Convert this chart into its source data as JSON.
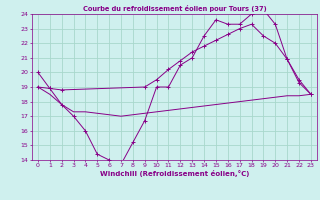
{
  "title": "Courbe du refroidissement éolien pour Tours (37)",
  "xlabel": "Windchill (Refroidissement éolien,°C)",
  "xlim": [
    -0.5,
    23.5
  ],
  "ylim": [
    14,
    24
  ],
  "yticks": [
    14,
    15,
    16,
    17,
    18,
    19,
    20,
    21,
    22,
    23,
    24
  ],
  "xticks": [
    0,
    1,
    2,
    3,
    4,
    5,
    6,
    7,
    8,
    9,
    10,
    11,
    12,
    13,
    14,
    15,
    16,
    17,
    18,
    19,
    20,
    21,
    22,
    23
  ],
  "background_color": "#cff0ee",
  "grid_color": "#a8d8cc",
  "line_color": "#880088",
  "line1_x": [
    0,
    1,
    2,
    3,
    4,
    5,
    6,
    7,
    8,
    9,
    10,
    11,
    12,
    13,
    14,
    15,
    16,
    17,
    18,
    19,
    20,
    21,
    22,
    23
  ],
  "line1_y": [
    20.0,
    18.9,
    17.8,
    17.0,
    16.0,
    14.4,
    14.0,
    13.7,
    15.2,
    16.7,
    19.0,
    19.0,
    20.5,
    21.0,
    22.5,
    23.6,
    23.3,
    23.3,
    24.0,
    24.3,
    23.3,
    20.9,
    19.3,
    18.5
  ],
  "line2_x": [
    0,
    1,
    2,
    9,
    10,
    11,
    12,
    13,
    14,
    15,
    16,
    17,
    18,
    19,
    20,
    21,
    22,
    23
  ],
  "line2_y": [
    19.0,
    18.9,
    18.8,
    19.0,
    19.5,
    20.2,
    20.8,
    21.4,
    21.8,
    22.2,
    22.6,
    23.0,
    23.3,
    22.5,
    22.0,
    20.9,
    19.5,
    18.5
  ],
  "line3_x": [
    0,
    1,
    2,
    3,
    4,
    5,
    6,
    7,
    8,
    9,
    10,
    11,
    12,
    13,
    14,
    15,
    16,
    17,
    18,
    19,
    20,
    21,
    22,
    23
  ],
  "line3_y": [
    19.0,
    18.5,
    17.8,
    17.3,
    17.3,
    17.2,
    17.1,
    17.0,
    17.1,
    17.2,
    17.3,
    17.4,
    17.5,
    17.6,
    17.7,
    17.8,
    17.9,
    18.0,
    18.1,
    18.2,
    18.3,
    18.4,
    18.4,
    18.5
  ]
}
